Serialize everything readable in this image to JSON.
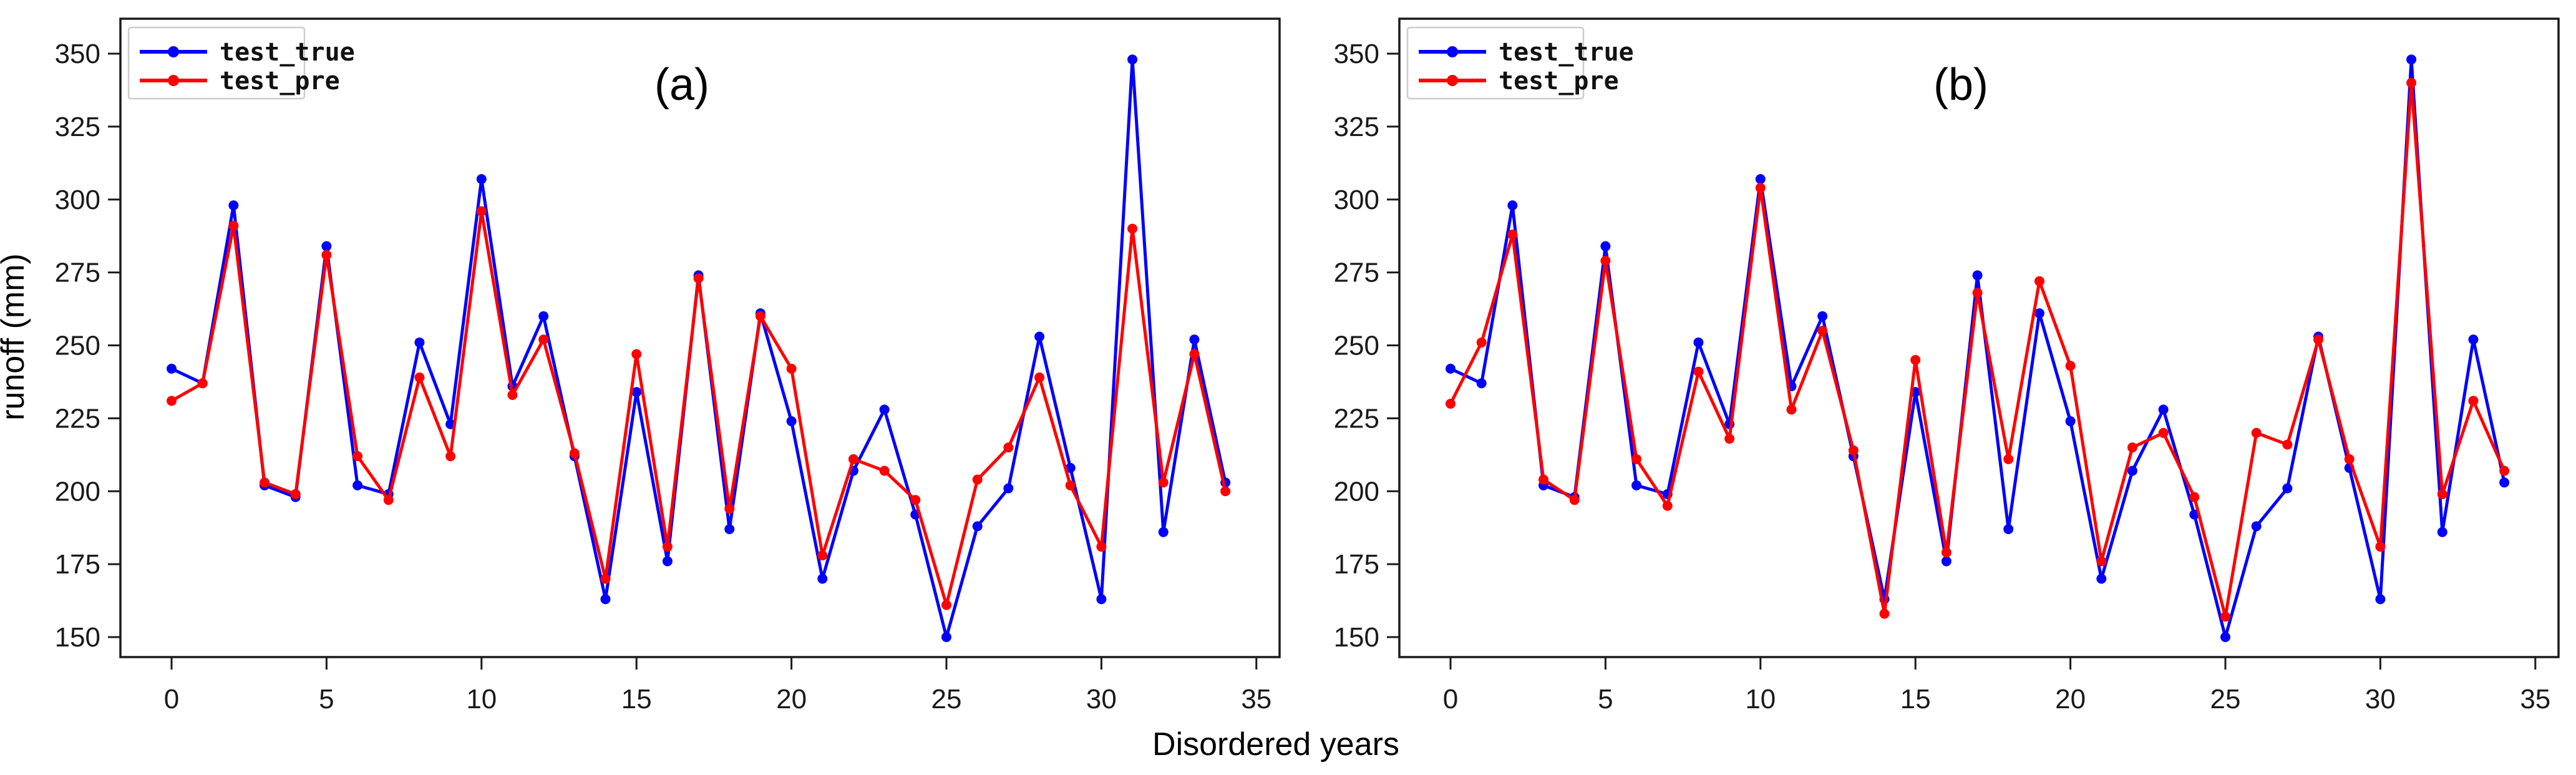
{
  "figure": {
    "xlabel": "Disordered years",
    "ylabel": "runoff (mm)"
  },
  "chart_data": [
    {
      "type": "line",
      "panel_label": "(a)",
      "xlabel": "Disordered years",
      "ylabel": "runoff (mm)",
      "xlim": [
        -1.65,
        35.7
      ],
      "ylim": [
        143,
        362
      ],
      "grid": false,
      "legend_position": "upper left",
      "xticks": [
        0,
        5,
        10,
        15,
        20,
        25,
        30,
        35
      ],
      "yticks": [
        150,
        175,
        200,
        225,
        250,
        275,
        300,
        325,
        350
      ],
      "x": [
        0,
        1,
        2,
        3,
        4,
        5,
        6,
        7,
        8,
        9,
        10,
        11,
        12,
        13,
        14,
        15,
        16,
        17,
        18,
        19,
        20,
        21,
        22,
        23,
        24,
        25,
        26,
        27,
        28,
        29,
        30,
        31,
        32,
        33,
        34
      ],
      "series": [
        {
          "name": "test_true",
          "color": "#0000ff",
          "values": [
            242,
            237,
            298,
            202,
            198,
            284,
            202,
            199,
            251,
            223,
            307,
            236,
            260,
            212,
            163,
            234,
            176,
            274,
            187,
            261,
            224,
            170,
            207,
            228,
            192,
            150,
            188,
            201,
            253,
            208,
            163,
            348,
            186,
            252,
            203
          ]
        },
        {
          "name": "test_pre",
          "color": "#ff0000",
          "values": [
            231,
            237,
            291,
            203,
            199,
            281,
            212,
            197,
            239,
            212,
            296,
            233,
            252,
            213,
            170,
            247,
            181,
            273,
            194,
            260,
            242,
            178,
            211,
            207,
            197,
            161,
            204,
            215,
            239,
            202,
            181,
            290,
            203,
            247,
            200
          ]
        }
      ]
    },
    {
      "type": "line",
      "panel_label": "(b)",
      "xlabel": "Disordered years",
      "ylabel": "runoff (mm)",
      "xlim": [
        -1.65,
        35.7
      ],
      "ylim": [
        143,
        362
      ],
      "grid": false,
      "legend_position": "upper left",
      "xticks": [
        0,
        5,
        10,
        15,
        20,
        25,
        30,
        35
      ],
      "yticks": [
        150,
        175,
        200,
        225,
        250,
        275,
        300,
        325,
        350
      ],
      "x": [
        0,
        1,
        2,
        3,
        4,
        5,
        6,
        7,
        8,
        9,
        10,
        11,
        12,
        13,
        14,
        15,
        16,
        17,
        18,
        19,
        20,
        21,
        22,
        23,
        24,
        25,
        26,
        27,
        28,
        29,
        30,
        31,
        32,
        33,
        34
      ],
      "series": [
        {
          "name": "test_true",
          "color": "#0000ff",
          "values": [
            242,
            237,
            298,
            202,
            198,
            284,
            202,
            199,
            251,
            223,
            307,
            236,
            260,
            212,
            163,
            234,
            176,
            274,
            187,
            261,
            224,
            170,
            207,
            228,
            192,
            150,
            188,
            201,
            253,
            208,
            163,
            348,
            186,
            252,
            203
          ]
        },
        {
          "name": "test_pre",
          "color": "#ff0000",
          "values": [
            230,
            251,
            288,
            204,
            197,
            279,
            211,
            195,
            241,
            218,
            304,
            228,
            255,
            214,
            158,
            245,
            179,
            268,
            211,
            272,
            243,
            176,
            215,
            220,
            198,
            157,
            220,
            216,
            252,
            211,
            181,
            340,
            199,
            231,
            207
          ]
        }
      ]
    }
  ]
}
